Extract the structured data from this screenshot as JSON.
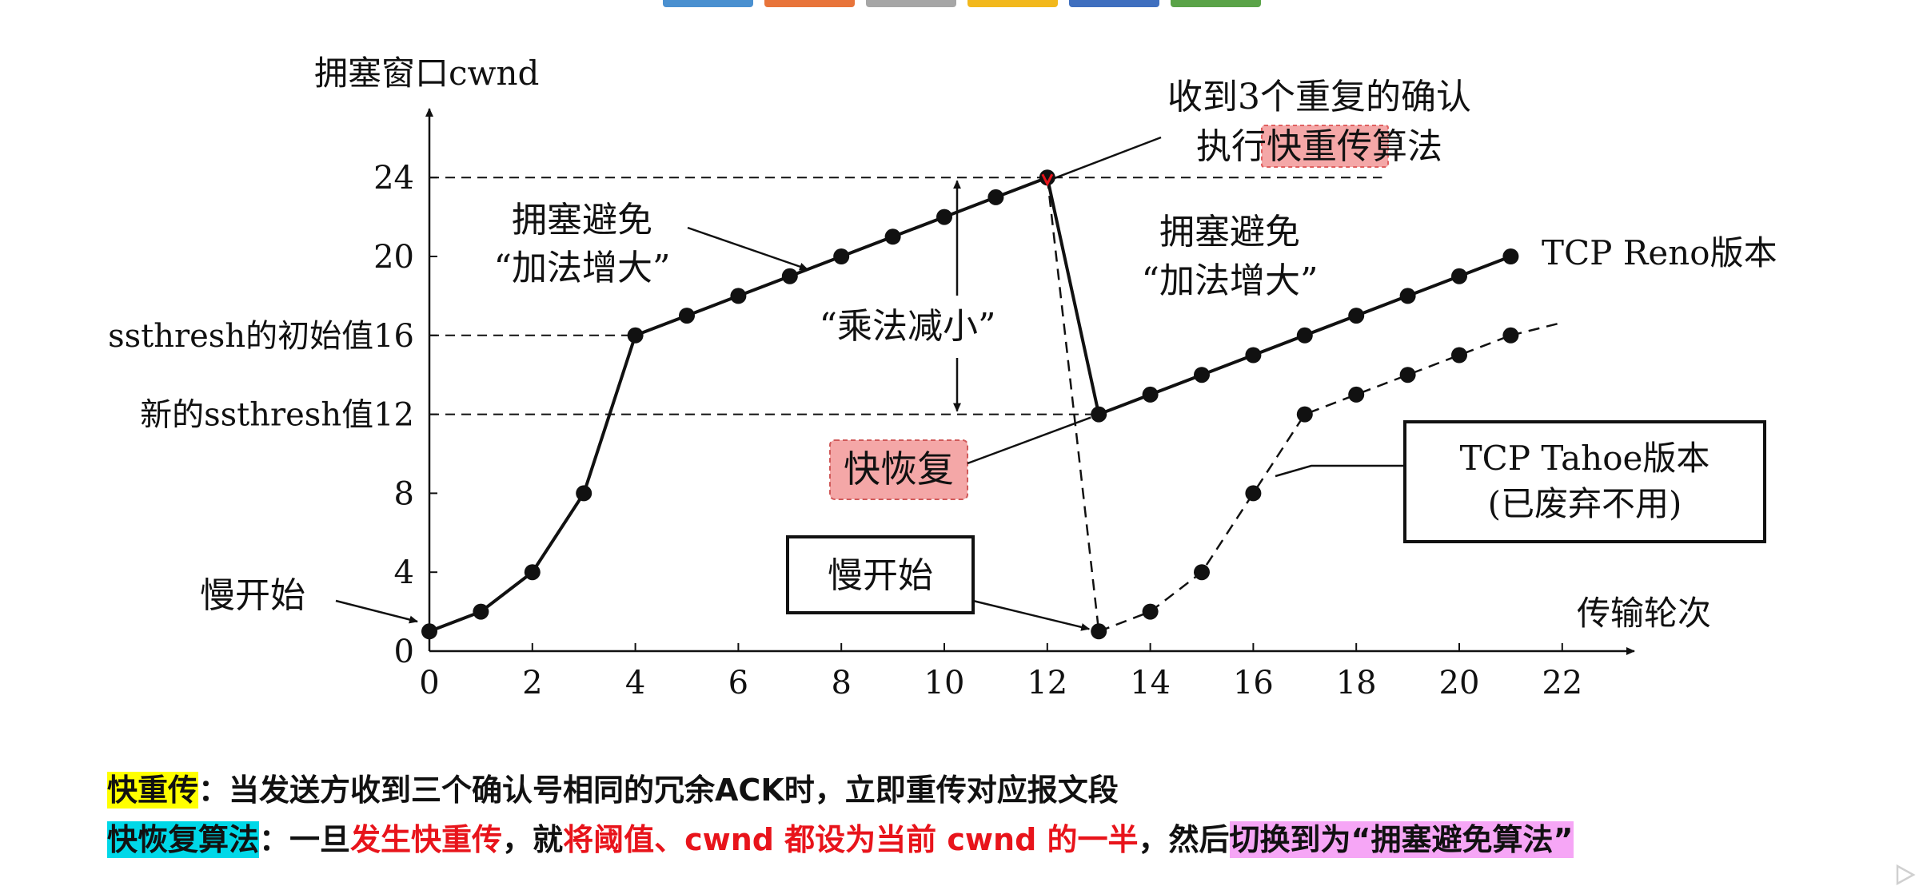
{
  "toolbar": {
    "swatches": [
      "#4a90d0",
      "#e8743a",
      "#a6a6a6",
      "#f2b81c",
      "#3f6fbf",
      "#5aa348"
    ]
  },
  "chart_data": {
    "type": "line",
    "ylabel": "拥塞窗口cwnd",
    "xlabel": "传输轮次",
    "xlim": [
      0,
      23
    ],
    "ylim": [
      0,
      26
    ],
    "x_ticks": [
      0,
      2,
      4,
      6,
      8,
      10,
      12,
      14,
      16,
      18,
      20,
      22
    ],
    "y_ticks": [
      0,
      4,
      8,
      12,
      16,
      20,
      24
    ],
    "y_special_labels": [
      {
        "value": 16,
        "text": "ssthresh的初始值16"
      },
      {
        "value": 12,
        "text": "新的ssthresh值12"
      }
    ],
    "series": [
      {
        "name": "TCP Reno版本",
        "style": "solid",
        "x": [
          0,
          1,
          2,
          3,
          4,
          5,
          6,
          7,
          8,
          9,
          10,
          11,
          12,
          13,
          14,
          15,
          16,
          17,
          18,
          19,
          20,
          21
        ],
        "y": [
          1,
          2,
          4,
          8,
          16,
          17,
          18,
          19,
          20,
          21,
          22,
          23,
          24,
          12,
          13,
          14,
          15,
          16,
          17,
          18,
          19,
          20
        ]
      },
      {
        "name": "TCP Tahoe版本",
        "label_line2": "(已废弃不用)",
        "style": "dashed",
        "x": [
          13,
          14,
          15,
          16,
          17,
          18,
          19,
          20,
          21
        ],
        "y": [
          1,
          2,
          4,
          8,
          12,
          13,
          14,
          15,
          16
        ]
      }
    ],
    "annotations": {
      "slow_start_1": "慢开始",
      "slow_start_2": "慢开始",
      "ca_1_line1": "拥塞避免",
      "ca_1_line2": "“加法增大”",
      "ca_2_line1": "拥塞避免",
      "ca_2_line2": "“加法增大”",
      "md": "“乘法减小”",
      "fr_line1": "收到3个重复的确认",
      "fr_line2_pre": "执行",
      "fr_line2_hl": "快重传",
      "fr_line2_post": "算法",
      "fast_recovery": "快恢复"
    }
  },
  "footer": {
    "line1_label": "快重传",
    "line1_text": "：当发送方收到三个确认号相同的冗余ACK时，立即重传对应报文段",
    "line2_label": "快恢复算法",
    "line2_a": "：一旦",
    "line2_b": "发生快重传",
    "line2_c": "，就",
    "line2_d": "将阈值、cwnd 都设为当前 cwnd 的一半",
    "line2_e": "，然后",
    "line2_f": "切换到为“拥塞避免算法”"
  }
}
